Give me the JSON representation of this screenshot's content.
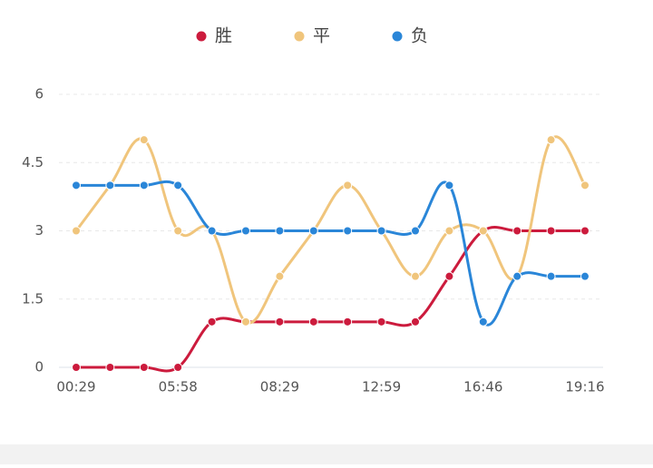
{
  "chart_data": {
    "type": "line",
    "categories": [
      "00:29",
      null,
      null,
      "05:58",
      null,
      null,
      "08:29",
      null,
      null,
      "12:59",
      null,
      null,
      "16:46",
      null,
      null,
      "19:16"
    ],
    "series": [
      {
        "name": "胜",
        "color": "#cc1b3d",
        "values": [
          0,
          0,
          0,
          0,
          1,
          1,
          1,
          1,
          1,
          1,
          1,
          2,
          3,
          3,
          3,
          3
        ]
      },
      {
        "name": "平",
        "color": "#f0c57c",
        "values": [
          3,
          4,
          5,
          3,
          3,
          1,
          2,
          3,
          4,
          3,
          2,
          3,
          3,
          2,
          5,
          4
        ]
      },
      {
        "name": "负",
        "color": "#2a86d8",
        "values": [
          4,
          4,
          4,
          4,
          3,
          3,
          3,
          3,
          3,
          3,
          3,
          4,
          1,
          2,
          2,
          2
        ]
      }
    ],
    "ylim": [
      0,
      6
    ],
    "yticks": [
      0,
      1.5,
      3,
      4.5,
      6
    ],
    "grid": true,
    "smooth": true,
    "legend": "top"
  }
}
